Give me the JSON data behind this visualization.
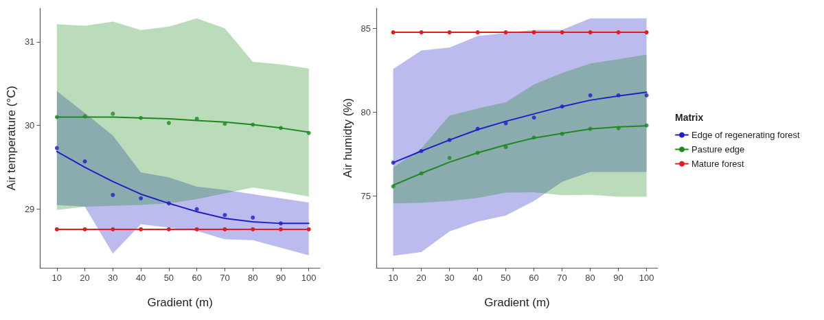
{
  "chart_data": [
    {
      "type": "line",
      "xlabel": "Gradient (m)",
      "ylabel": "Air temperature (°C)",
      "x": [
        10,
        20,
        30,
        40,
        50,
        60,
        70,
        80,
        90,
        100
      ],
      "xlim": [
        4,
        104
      ],
      "xticks": [
        10,
        20,
        30,
        40,
        50,
        60,
        70,
        80,
        90,
        100
      ],
      "ylim": [
        28.3,
        31.4
      ],
      "yticks": [
        29,
        30,
        31
      ],
      "grid": false,
      "series": [
        {
          "color": "#1f1fc8",
          "marker": "none",
          "values": [
            29.69,
            29.5,
            29.33,
            29.18,
            29.07,
            28.97,
            28.89,
            28.85,
            28.83,
            28.83
          ],
          "lower": [
            29.05,
            29.03,
            28.47,
            28.82,
            28.78,
            28.74,
            28.64,
            28.63,
            28.54,
            28.45
          ],
          "upper": [
            30.41,
            30.15,
            29.88,
            29.44,
            29.38,
            29.27,
            29.23,
            29.18,
            29.13,
            29.08
          ]
        },
        {
          "color": "#1e8a1e",
          "marker": "none",
          "values": [
            30.1,
            30.1,
            30.1,
            30.09,
            30.08,
            30.06,
            30.04,
            30.01,
            29.97,
            29.92
          ],
          "lower": [
            28.99,
            29.03,
            29.04,
            29.05,
            29.07,
            29.12,
            29.19,
            29.26,
            29.21,
            29.15
          ],
          "upper": [
            31.21,
            31.19,
            31.24,
            31.14,
            31.18,
            31.28,
            31.16,
            30.76,
            30.73,
            30.68
          ]
        },
        {
          "color": "#e01e1e",
          "marker": "circle",
          "values": [
            28.76,
            28.76,
            28.76,
            28.76,
            28.76,
            28.76,
            28.76,
            28.76,
            28.76,
            28.76
          ]
        },
        {
          "color": "#1f1fc8",
          "type": "scatter",
          "marker": "circle",
          "values": [
            29.73,
            29.57,
            29.17,
            29.13,
            29.07,
            29.0,
            28.93,
            28.9,
            28.83,
            null
          ]
        },
        {
          "color": "#1e8a1e",
          "type": "scatter",
          "marker": "circle",
          "values": [
            30.1,
            30.11,
            30.14,
            30.09,
            30.03,
            30.08,
            30.02,
            30.01,
            29.97,
            29.91
          ]
        }
      ]
    },
    {
      "type": "line",
      "xlabel": "Gradient (m)",
      "ylabel": "Air humidty (%)",
      "legend_title": "Matrix",
      "legend": "right",
      "x": [
        10,
        20,
        30,
        40,
        50,
        60,
        70,
        80,
        90,
        100
      ],
      "xlim": [
        4,
        104
      ],
      "xticks": [
        10,
        20,
        30,
        40,
        50,
        60,
        70,
        80,
        90,
        100
      ],
      "ylim": [
        70.7,
        86.2
      ],
      "yticks": [
        75,
        80,
        85
      ],
      "grid": false,
      "series": [
        {
          "name": "Edge of regenerating forest",
          "color": "#1f1fc8",
          "marker": "none",
          "values": [
            76.98,
            77.67,
            78.33,
            78.95,
            79.45,
            79.89,
            80.33,
            80.71,
            80.96,
            81.19
          ],
          "lower": [
            71.42,
            71.64,
            72.87,
            73.46,
            73.83,
            74.69,
            75.84,
            76.42,
            76.42,
            76.42
          ],
          "upper": [
            82.57,
            83.68,
            83.85,
            84.54,
            84.72,
            84.91,
            84.91,
            85.6,
            85.6,
            85.6
          ]
        },
        {
          "name": "Pasture edge",
          "color": "#1e8a1e",
          "marker": "none",
          "values": [
            75.63,
            76.34,
            77.01,
            77.57,
            78.04,
            78.45,
            78.73,
            78.99,
            79.12,
            79.18
          ],
          "lower": [
            74.54,
            74.59,
            74.69,
            74.87,
            75.19,
            75.21,
            75.04,
            75.06,
            74.94,
            74.94
          ],
          "upper": [
            76.69,
            77.82,
            79.79,
            80.21,
            80.58,
            81.65,
            82.34,
            82.9,
            83.16,
            83.43
          ]
        },
        {
          "name": "Mature forest",
          "color": "#e01e1e",
          "marker": "circle",
          "values": [
            84.76,
            84.76,
            84.76,
            84.76,
            84.76,
            84.76,
            84.76,
            84.76,
            84.76,
            84.76
          ]
        },
        {
          "color": "#1f1fc8",
          "type": "scatter",
          "marker": "circle",
          "values": [
            76.98,
            77.67,
            78.33,
            79.0,
            79.33,
            79.67,
            80.33,
            81.0,
            81.0,
            81.0
          ]
        },
        {
          "color": "#1e8a1e",
          "type": "scatter",
          "marker": "circle",
          "values": [
            75.56,
            76.34,
            77.26,
            77.57,
            77.91,
            78.48,
            78.7,
            79.0,
            79.04,
            79.2
          ]
        }
      ]
    }
  ]
}
